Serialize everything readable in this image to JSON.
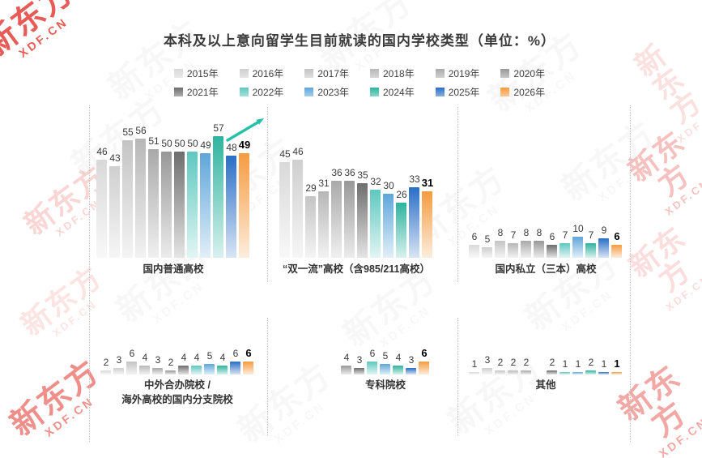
{
  "page": {
    "title": "本科及以上意向留学生目前就读的国内学校类型（单位：%）"
  },
  "watermark": {
    "brand": "新东方",
    "domain": "XDF.CN",
    "red_color": "#e2342c",
    "gray_color": "#9a9a9a"
  },
  "chart_data": {
    "type": "bar",
    "title": "本科及以上意向留学生目前就读的国内学校类型",
    "unit": "%",
    "legend_position": "top",
    "grid": false,
    "ylim": [
      0,
      60
    ],
    "years": [
      "2015年",
      "2016年",
      "2017年",
      "2018年",
      "2019年",
      "2020年",
      "2021年",
      "2022年",
      "2023年",
      "2024年",
      "2025年",
      "2026年"
    ],
    "year_colors": [
      "#d9d9d9",
      "#cfcfcf",
      "#c4c4c4",
      "#b7b7b7",
      "#a9a9a9",
      "#989898",
      "#6d6d6d",
      "#5ec8c0",
      "#5fa6da",
      "#2eb39e",
      "#2a6ec5",
      "#f59b40"
    ],
    "highlight_color": "#26c0a8",
    "groups": [
      {
        "name": "国内普通高校",
        "label_lines": [
          "国内普通高校"
        ],
        "start_year_index": 0,
        "values": [
          46,
          43,
          55,
          56,
          51,
          50,
          50,
          50,
          49,
          57,
          48,
          49
        ],
        "trend_arrow": true
      },
      {
        "name": "“双一流”高校（含985/211高校）",
        "label_lines": [
          "“双一流”高校（含985/211高校）"
        ],
        "start_year_index": 0,
        "values": [
          45,
          46,
          29,
          31,
          36,
          36,
          35,
          32,
          30,
          26,
          33,
          31
        ]
      },
      {
        "name": "国内私立（三本）高校",
        "label_lines": [
          "国内私立（三本）高校"
        ],
        "start_year_index": 0,
        "values": [
          6,
          5,
          8,
          7,
          8,
          8,
          6,
          7,
          10,
          7,
          9,
          6
        ]
      },
      {
        "name": "中外合办院校 / 海外高校的国内分支院校",
        "label_lines": [
          "中外合办院校 /",
          "海外高校的国内分支院校"
        ],
        "start_year_index": 0,
        "values": [
          2,
          3,
          6,
          4,
          3,
          2,
          4,
          4,
          5,
          4,
          6,
          6
        ]
      },
      {
        "name": "专科院校",
        "label_lines": [
          "专科院校"
        ],
        "start_year_index": 5,
        "values": [
          4,
          3,
          6,
          5,
          4,
          3,
          6
        ]
      },
      {
        "name": "其他",
        "label_lines": [
          "其他"
        ],
        "start_year_index": 0,
        "values": [
          1,
          3,
          2,
          2,
          2,
          null,
          2,
          1,
          1,
          2,
          1,
          1
        ]
      }
    ]
  }
}
